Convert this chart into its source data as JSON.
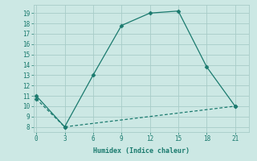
{
  "line1_x": [
    0,
    3,
    6,
    9,
    12,
    15,
    18,
    21
  ],
  "line1_y": [
    11,
    8,
    13,
    17.8,
    19,
    19.2,
    13.8,
    10
  ],
  "line2_x": [
    0,
    3,
    21
  ],
  "line2_y": [
    10.7,
    8.0,
    10.0
  ],
  "line_color": "#1a7a6e",
  "bg_color": "#cce8e4",
  "grid_color": "#a8ccc8",
  "xlabel": "Humidex (Indice chaleur)",
  "xlim": [
    -0.3,
    22.5
  ],
  "ylim": [
    7.5,
    19.8
  ],
  "xticks": [
    0,
    3,
    6,
    9,
    12,
    15,
    18,
    21
  ],
  "yticks": [
    8,
    9,
    10,
    11,
    12,
    13,
    14,
    15,
    16,
    17,
    18,
    19
  ]
}
